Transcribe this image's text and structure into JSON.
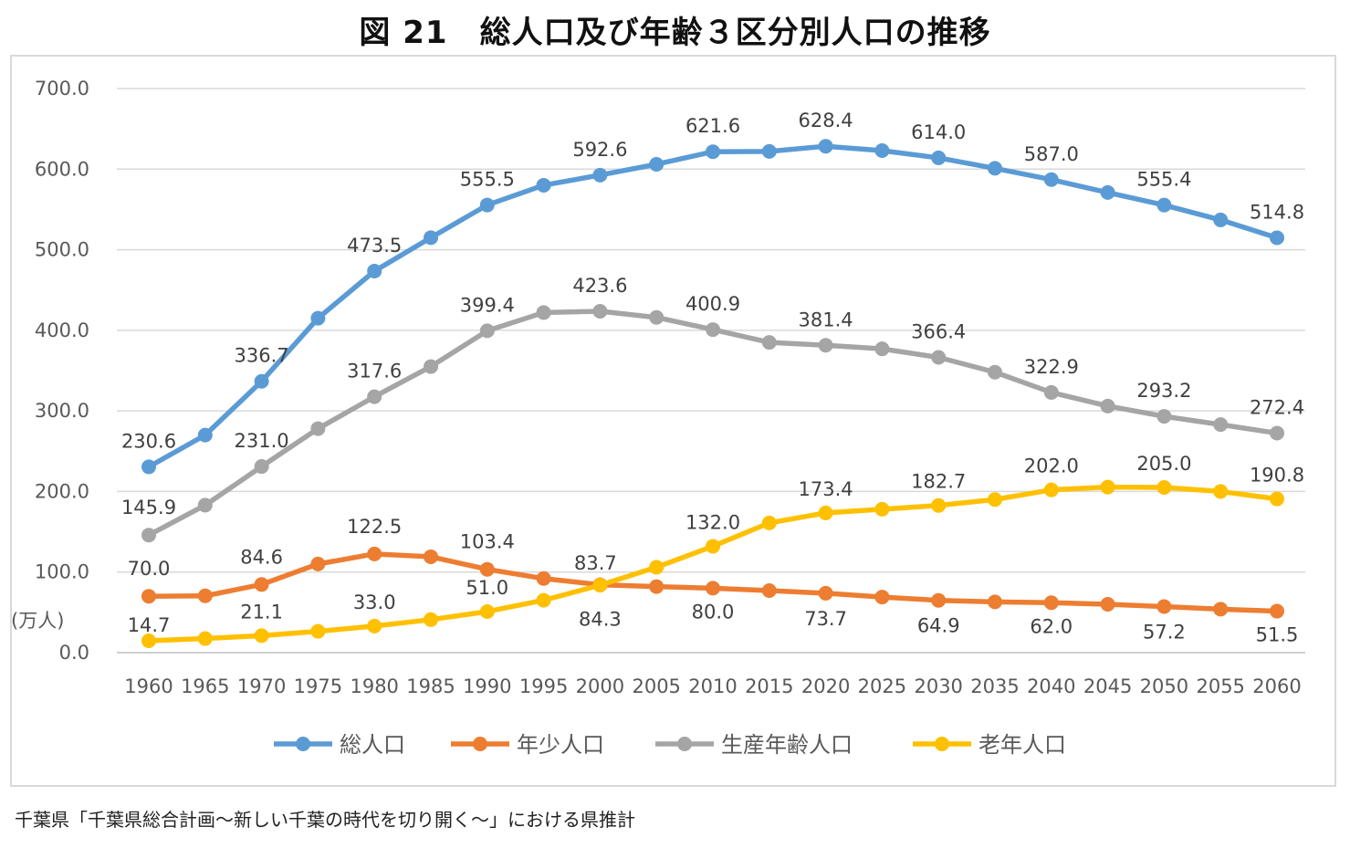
{
  "title": "図 21　総人口及び年齢３区分別人口の推移",
  "source": "千葉県「千葉県総合計画～新しい千葉の時代を切り開く～」における県推計",
  "chart_data": {
    "type": "line",
    "title": "図 21　総人口及び年齢３区分別人口の推移",
    "ylabel": "(万人)",
    "xlabel": "",
    "ylim": [
      0,
      700
    ],
    "ytick_step": 100,
    "ytick_labels": [
      "0.0",
      "100.0",
      "200.0",
      "300.0",
      "400.0",
      "500.0",
      "600.0",
      "700.0"
    ],
    "grid": true,
    "legend_position": "bottom",
    "categories": [
      "1960",
      "1965",
      "1970",
      "1975",
      "1980",
      "1985",
      "1990",
      "1995",
      "2000",
      "2005",
      "2010",
      "2015",
      "2020",
      "2025",
      "2030",
      "2035",
      "2040",
      "2045",
      "2050",
      "2055",
      "2060"
    ],
    "series": [
      {
        "name": "総人口",
        "color": "#5b9bd5",
        "values": [
          230.6,
          270,
          336.7,
          415,
          473.5,
          515,
          555.5,
          580,
          592.6,
          606,
          621.6,
          622,
          628.4,
          623,
          614.0,
          601,
          587.0,
          571,
          555.4,
          537,
          514.8
        ],
        "labels": {
          "0": "230.6",
          "2": "336.7",
          "4": "473.5",
          "6": "555.5",
          "8": "592.6",
          "10": "621.6",
          "12": "628.4",
          "14": "614.0",
          "16": "587.0",
          "18": "555.4",
          "20": "514.8"
        }
      },
      {
        "name": "年少人口",
        "color": "#ed7d31",
        "values": [
          70.0,
          70.5,
          84.6,
          110,
          122.5,
          119,
          103.4,
          92,
          84.3,
          82,
          80.0,
          77,
          73.7,
          69,
          64.9,
          63,
          62.0,
          60,
          57.2,
          54,
          51.5
        ],
        "labels": {
          "0": "70.0",
          "2": "84.6",
          "4": "122.5",
          "6": "103.4",
          "8": "84.3",
          "10": "80.0",
          "12": "73.7",
          "14": "64.9",
          "16": "62.0",
          "18": "57.2",
          "20": "51.5"
        }
      },
      {
        "name": "生産年齢人口",
        "color": "#a5a5a5",
        "values": [
          145.9,
          183,
          231.0,
          278,
          317.6,
          355,
          399.4,
          422,
          423.6,
          416,
          400.9,
          385,
          381.4,
          377,
          366.4,
          348,
          322.9,
          306,
          293.2,
          283,
          272.4
        ],
        "labels": {
          "0": "145.9",
          "2": "231.0",
          "4": "317.6",
          "6": "399.4",
          "8": "423.6",
          "10": "400.9",
          "12": "381.4",
          "14": "366.4",
          "16": "322.9",
          "18": "293.2",
          "20": "272.4"
        }
      },
      {
        "name": "老年人口",
        "color": "#ffc000",
        "values": [
          14.7,
          17.5,
          21.1,
          26.5,
          33.0,
          41,
          51.0,
          65,
          83.7,
          106,
          132.0,
          161,
          173.4,
          178,
          182.7,
          190,
          202.0,
          205.5,
          205.0,
          200,
          190.8
        ],
        "labels": {
          "0": "14.7",
          "2": "21.1",
          "4": "33.0",
          "6": "51.0",
          "8": "83.7",
          "10": "132.0",
          "12": "173.4",
          "14": "182.7",
          "16": "202.0",
          "18": "205.0",
          "20": "190.8"
        }
      }
    ]
  }
}
